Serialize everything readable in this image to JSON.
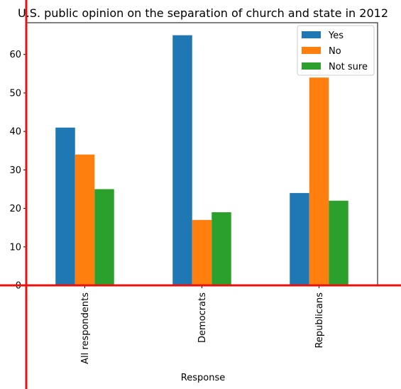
{
  "chart_data": {
    "type": "bar",
    "title": "U.S. public opinion on the separation of church and state in 2012",
    "xlabel": "Response",
    "ylabel": "",
    "categories": [
      "All respondents",
      "Democrats",
      "Republicans"
    ],
    "series": [
      {
        "name": "Yes",
        "values": [
          41,
          65,
          24
        ],
        "color": "#1f77b4"
      },
      {
        "name": "No",
        "values": [
          34,
          17,
          54
        ],
        "color": "#ff7f0e"
      },
      {
        "name": "Not sure",
        "values": [
          25,
          19,
          22
        ],
        "color": "#2ca02c"
      }
    ],
    "yticks": [
      0,
      10,
      20,
      30,
      40,
      50,
      60
    ],
    "ylim": [
      0,
      68.25
    ],
    "grid": false,
    "legend_position": "top-right",
    "overlay_axes_color": "#e8120c"
  }
}
